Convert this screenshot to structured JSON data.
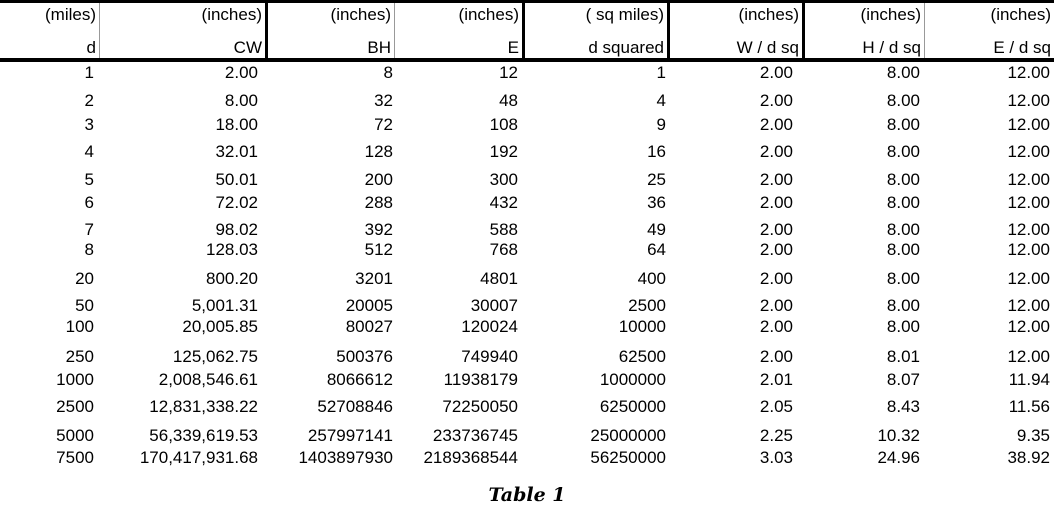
{
  "table": {
    "columns": [
      {
        "unit": "(miles)",
        "name": "d"
      },
      {
        "unit": "(inches)",
        "name": "CW"
      },
      {
        "unit": "(inches)",
        "name": "BH"
      },
      {
        "unit": "(inches)",
        "name": "E"
      },
      {
        "unit": "( sq miles)",
        "name": "d squared"
      },
      {
        "unit": "(inches)",
        "name": "W / d sq"
      },
      {
        "unit": "(inches)",
        "name": "H / d sq"
      },
      {
        "unit": "(inches)",
        "name": "E / d sq"
      }
    ],
    "rows": [
      [
        "1",
        "2.00",
        "8",
        "12",
        "1",
        "2.00",
        "8.00",
        "12.00"
      ],
      [
        "2",
        "8.00",
        "32",
        "48",
        "4",
        "2.00",
        "8.00",
        "12.00"
      ],
      [
        "3",
        "18.00",
        "72",
        "108",
        "9",
        "2.00",
        "8.00",
        "12.00"
      ],
      [
        "4",
        "32.01",
        "128",
        "192",
        "16",
        "2.00",
        "8.00",
        "12.00"
      ],
      [
        "5",
        "50.01",
        "200",
        "300",
        "25",
        "2.00",
        "8.00",
        "12.00"
      ],
      [
        "6",
        "72.02",
        "288",
        "432",
        "36",
        "2.00",
        "8.00",
        "12.00"
      ],
      [
        "7",
        "98.02",
        "392",
        "588",
        "49",
        "2.00",
        "8.00",
        "12.00"
      ],
      [
        "8",
        "128.03",
        "512",
        "768",
        "64",
        "2.00",
        "8.00",
        "12.00"
      ],
      [
        "20",
        "800.20",
        "3201",
        "4801",
        "400",
        "2.00",
        "8.00",
        "12.00"
      ],
      [
        "50",
        "5,001.31",
        "20005",
        "30007",
        "2500",
        "2.00",
        "8.00",
        "12.00"
      ],
      [
        "100",
        "20,005.85",
        "80027",
        "120024",
        "10000",
        "2.00",
        "8.00",
        "12.00"
      ],
      [
        "250",
        "125,062.75",
        "500376",
        "749940",
        "62500",
        "2.00",
        "8.01",
        "12.00"
      ],
      [
        "1000",
        "2,008,546.61",
        "8066612",
        "11938179",
        "1000000",
        "2.01",
        "8.07",
        "11.94"
      ],
      [
        "2500",
        "12,831,338.22",
        "52708846",
        "72250050",
        "6250000",
        "2.05",
        "8.43",
        "11.56"
      ],
      [
        "5000",
        "56,339,619.53",
        "257997141",
        "233736745",
        "25000000",
        "2.25",
        "10.32",
        "9.35"
      ],
      [
        "7500",
        "170,417,931.68",
        "1403897930",
        "2189368544",
        "56250000",
        "3.03",
        "24.96",
        "38.92"
      ]
    ]
  },
  "caption": "Table 1"
}
